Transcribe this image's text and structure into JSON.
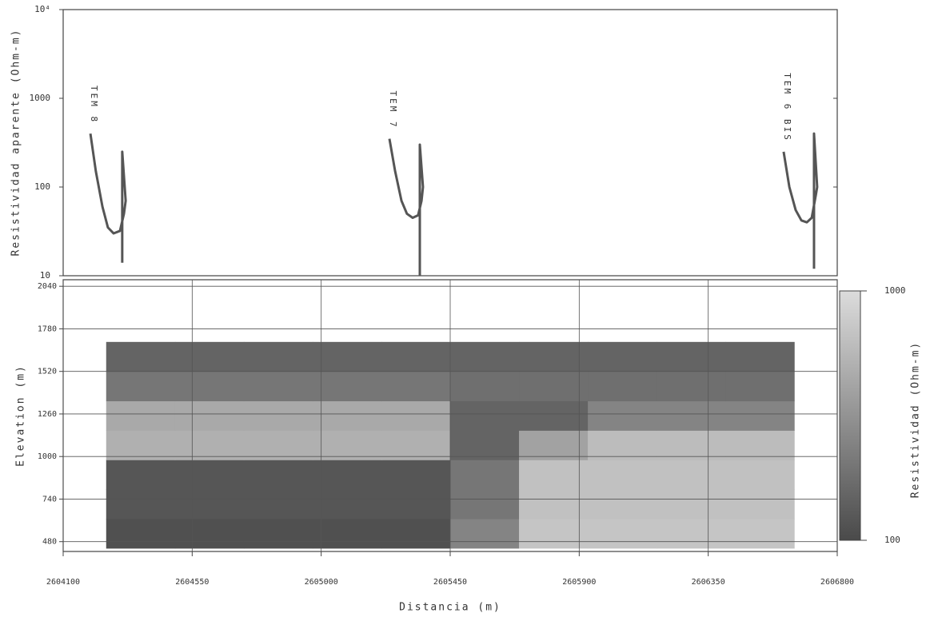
{
  "chart_data": [
    {
      "type": "line",
      "ylabel": "Resistividad aparente (Ohm-m)",
      "yscale": "log",
      "xlim": [
        2604100,
        2606800
      ],
      "ylim": [
        10,
        10000
      ],
      "yticks": [
        10,
        100,
        1000,
        {
          "value": 10000,
          "label": "10⁴"
        }
      ],
      "series": [
        {
          "name": "TEM 8",
          "color": "#555555",
          "x": [
            2604195,
            2604214,
            2604237,
            2604256,
            2604276,
            2604298,
            2604312,
            2604318,
            2604306,
            2604306
          ],
          "values": [
            400,
            150,
            60,
            35,
            30,
            32,
            50,
            70,
            250,
            14
          ]
        },
        {
          "name": "TEM 7",
          "color": "#555555",
          "x": [
            2605238,
            2605258,
            2605280,
            2605299,
            2605319,
            2605338,
            2605350,
            2605355,
            2605344,
            2605344
          ],
          "values": [
            350,
            150,
            70,
            50,
            45,
            48,
            70,
            100,
            300,
            10
          ]
        },
        {
          "name": "TEM 6 BIS",
          "color": "#555555",
          "x": [
            2606613,
            2606633,
            2606655,
            2606675,
            2606694,
            2606711,
            2606725,
            2606730,
            2606719,
            2606719
          ],
          "values": [
            250,
            100,
            55,
            42,
            40,
            45,
            80,
            100,
            400,
            12
          ]
        }
      ]
    },
    {
      "type": "heatmap",
      "xlabel": "Distancia (m)",
      "ylabel": "Elevation (m)",
      "xlim": [
        2604100,
        2606800
      ],
      "xticks": [
        2604100,
        2604550,
        2605000,
        2605450,
        2605900,
        2606350,
        2606800
      ],
      "ylim": [
        420,
        2080
      ],
      "yticks": [
        480,
        740,
        1000,
        1260,
        1520,
        1780,
        2040
      ],
      "grid": true,
      "x_edges": [
        2604250,
        2604490,
        2604730,
        2604970,
        2605210,
        2605450,
        2605690,
        2605930,
        2606170,
        2606410,
        2606650
      ],
      "y_edges": [
        440,
        620,
        800,
        980,
        1160,
        1340,
        1520,
        1700
      ],
      "values": [
        [
          110,
          110,
          110,
          110,
          110,
          250,
          700,
          700,
          700,
          700
        ],
        [
          120,
          120,
          120,
          120,
          120,
          200,
          650,
          650,
          650,
          650
        ],
        [
          120,
          120,
          120,
          120,
          120,
          200,
          650,
          650,
          650,
          650
        ],
        [
          500,
          500,
          500,
          500,
          500,
          150,
          400,
          600,
          600,
          600
        ],
        [
          450,
          450,
          450,
          450,
          450,
          150,
          150,
          250,
          250,
          250
        ],
        [
          200,
          200,
          200,
          200,
          200,
          180,
          180,
          180,
          180,
          180
        ],
        [
          150,
          150,
          150,
          150,
          150,
          150,
          150,
          150,
          150,
          150
        ]
      ],
      "colorbar": {
        "label": "Resistividad (Ohm-m)",
        "scale": "log",
        "lim": [
          100,
          1000
        ],
        "ticks": [
          100,
          1000
        ],
        "colors": [
          "#4a4a4a",
          "#dcdcdc"
        ]
      }
    }
  ]
}
